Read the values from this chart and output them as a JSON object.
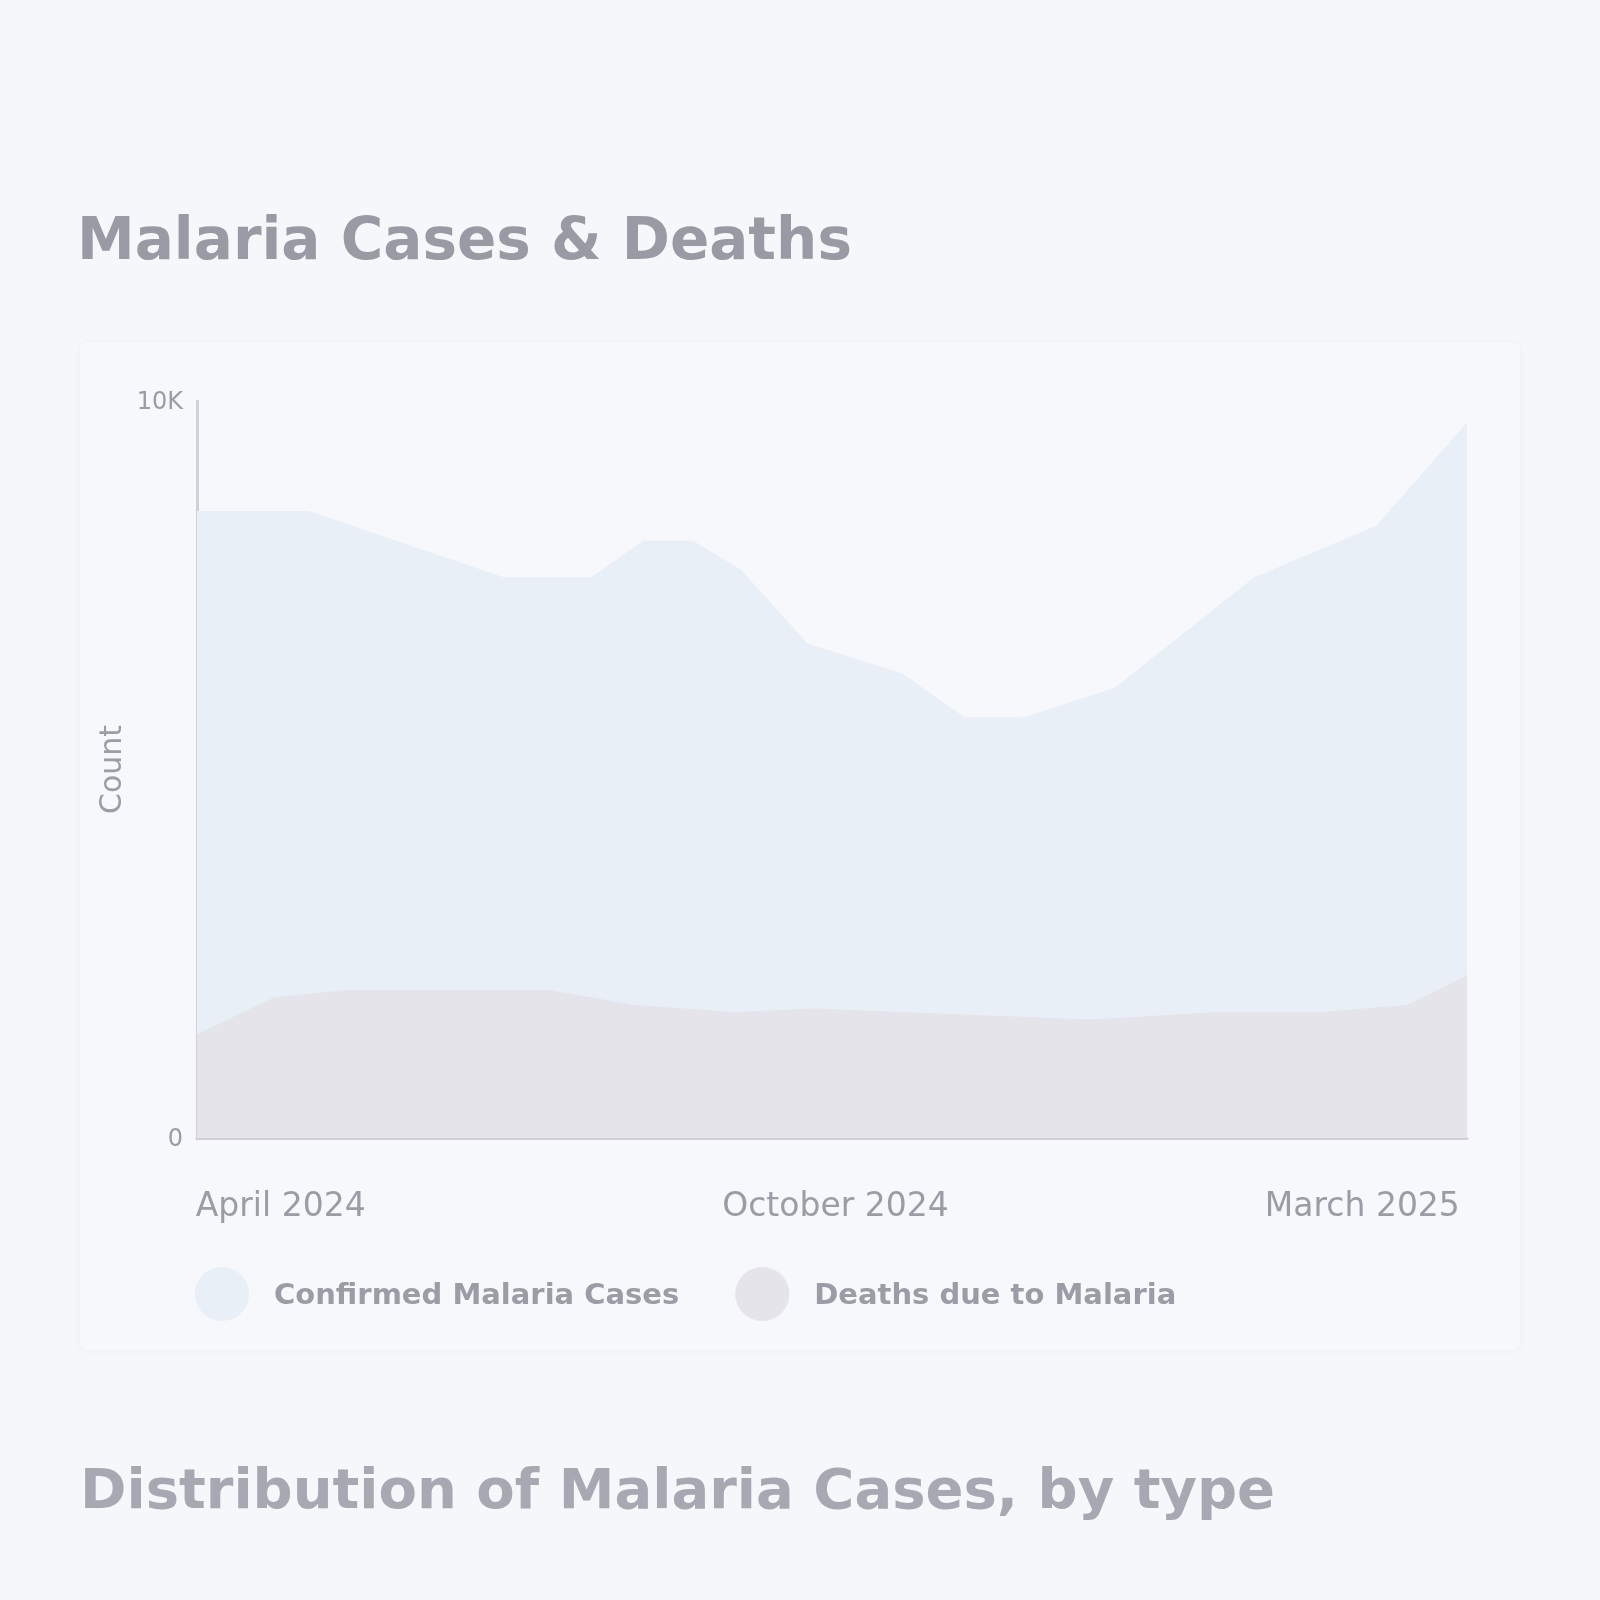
{
  "chart_data": {
    "type": "area",
    "title": "Malaria Cases & Deaths",
    "ylabel": "Count",
    "annotations": [
      "Distribution of Malaria Cases, by type"
    ],
    "xlim": [
      "2024-04-01",
      "2025-03-31"
    ],
    "xticks": [
      {
        "value": "2024-04-25",
        "label": "April 2024"
      },
      {
        "value": "2024-10-01",
        "label": "October 2024"
      },
      {
        "value": "2025-03-01",
        "label": "March 2025"
      }
    ],
    "ylim": [
      0,
      10000
    ],
    "yticks": [
      0,
      {
        "value": 10000,
        "label": "10K"
      }
    ],
    "grid": false,
    "legend": "bottom",
    "marker": "none",
    "series": [
      {
        "name": "Confirmed Malaria Cases",
        "color": "#e8eff7",
        "x": [
          "2024-04-01",
          "2024-05-03",
          "2024-06-28",
          "2024-07-23",
          "2024-08-07",
          "2024-08-21",
          "2024-09-04",
          "2024-09-23",
          "2024-10-20",
          "2024-11-07",
          "2024-11-24",
          "2024-12-20",
          "2025-01-29",
          "2025-03-05",
          "2025-03-31"
        ],
        "values": [
          8500,
          8500,
          7600,
          7600,
          8100,
          8100,
          7700,
          6700,
          6300,
          5700,
          5700,
          6100,
          7600,
          8300,
          9700
        ]
      },
      {
        "name": "Deaths due to Malaria",
        "color": "#e5e4ea",
        "x": [
          "2024-04-01",
          "2024-04-23",
          "2024-05-14",
          "2024-07-11",
          "2024-08-04",
          "2024-09-02",
          "2024-09-25",
          "2024-12-13",
          "2025-01-18",
          "2025-02-17",
          "2025-03-14",
          "2025-03-31"
        ],
        "values": [
          1400,
          1900,
          2000,
          2000,
          1800,
          1700,
          1750,
          1600,
          1700,
          1700,
          1800,
          2200
        ]
      }
    ]
  }
}
